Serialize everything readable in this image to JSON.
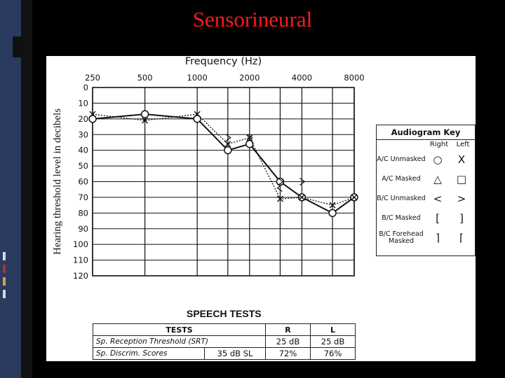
{
  "slide": {
    "title": "Sensorineural"
  },
  "speech": {
    "heading": "SPEECH TESTS",
    "headers": [
      "TESTS",
      "R",
      "L"
    ],
    "rows": [
      {
        "test": "Sp. Reception Threshold (SRT)",
        "extra": "",
        "r": "25 dB",
        "l": "25 dB"
      },
      {
        "test": "Sp. Discrim. Scores",
        "extra": "35 dB SL",
        "r": "72%",
        "l": "76%"
      }
    ]
  },
  "key": {
    "title": "Audiogram Key",
    "col_right": "Right",
    "col_left": "Left",
    "rows": [
      {
        "label": "A/C Unmasked",
        "right": "○",
        "left": "X"
      },
      {
        "label": "A/C Masked",
        "right": "△",
        "left": "□"
      },
      {
        "label": "B/C Unmasked",
        "right": "<",
        "left": ">"
      },
      {
        "label": "B/C Masked",
        "right": "[",
        "left": "]"
      },
      {
        "label": "B/C Forehead Masked",
        "right": "⌉",
        "left": "⌈"
      }
    ]
  },
  "chart_data": {
    "type": "line",
    "title": "Frequency (Hz)",
    "xlabel": "Frequency (Hz)",
    "ylabel": "Hearing threshold level in decibels",
    "categories": [
      "250",
      "500",
      "1000",
      "2000",
      "4000",
      "8000"
    ],
    "y_ticks": [
      "0",
      "10",
      "20",
      "30",
      "40",
      "50",
      "60",
      "70",
      "80",
      "90",
      "100",
      "110",
      "120"
    ],
    "ylim": [
      0,
      120
    ],
    "y_inverted": true,
    "grid": true,
    "x_positions": [
      "250",
      "500",
      "1000",
      "1500",
      "2000",
      "3000",
      "4000",
      "6000",
      "8000"
    ],
    "series": [
      {
        "marker": "circle",
        "color": "#111111",
        "line": "solid",
        "points": [
          [
            "250",
            20
          ],
          [
            "500",
            17
          ],
          [
            "1000",
            20
          ],
          [
            "1500",
            40
          ],
          [
            "2000",
            36
          ],
          [
            "3000",
            60
          ],
          [
            "4000",
            70
          ],
          [
            "6000",
            80
          ],
          [
            "8000",
            70
          ]
        ]
      },
      {
        "marker": "x",
        "color": "#111111",
        "line": "dotted",
        "points": [
          [
            "250",
            17
          ],
          [
            "500",
            21
          ],
          [
            "1000",
            17
          ],
          [
            "1500",
            36
          ],
          [
            "2000",
            32
          ],
          [
            "3000",
            71
          ],
          [
            "4000",
            70
          ],
          [
            "6000",
            75
          ],
          [
            "8000",
            70
          ]
        ]
      },
      {
        "marker": "gt",
        "color": "#111111",
        "line": "none",
        "points": [
          [
            "1500",
            32
          ],
          [
            "2000",
            32
          ],
          [
            "3000",
            60
          ],
          [
            "4000",
            60
          ]
        ]
      },
      {
        "marker": "lt",
        "color": "#111111",
        "line": "none",
        "points": [
          [
            "3000",
            64
          ]
        ]
      }
    ]
  }
}
